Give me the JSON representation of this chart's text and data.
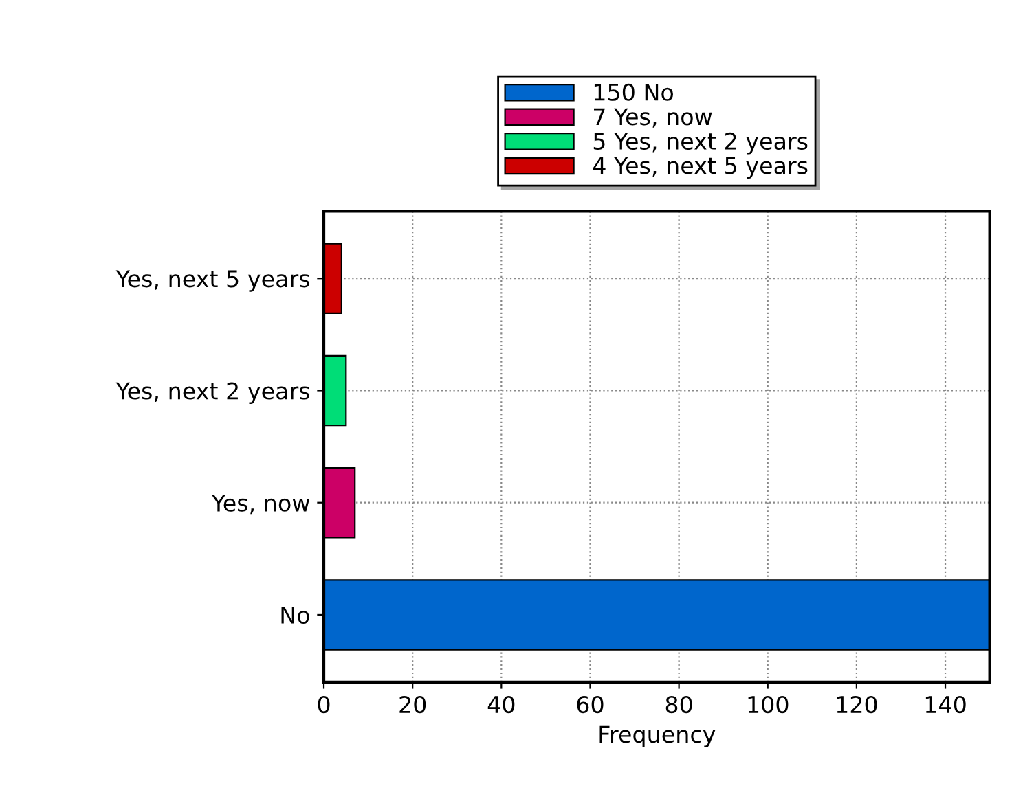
{
  "chart_data": {
    "type": "bar",
    "orientation": "horizontal",
    "xlabel": "Frequency",
    "categories": [
      "Yes, next 5 years",
      "Yes, next 2 years",
      "Yes, now",
      "No"
    ],
    "series": [
      {
        "name": "150 No",
        "color": "#0066cc",
        "values": [
          null,
          null,
          null,
          150
        ]
      },
      {
        "name": "7 Yes, now",
        "color": "#cc0066",
        "values": [
          null,
          null,
          7,
          null
        ]
      },
      {
        "name": "5 Yes, next 2 years",
        "color": "#00dd77",
        "values": [
          null,
          5,
          null,
          null
        ]
      },
      {
        "name": "4 Yes, next 5 years",
        "color": "#cc0000",
        "values": [
          4,
          null,
          null,
          null
        ]
      }
    ],
    "xlim": [
      0,
      150
    ],
    "xticks": [
      0,
      20,
      40,
      60,
      80,
      100,
      120,
      140
    ],
    "grid": true,
    "legend": "top"
  }
}
